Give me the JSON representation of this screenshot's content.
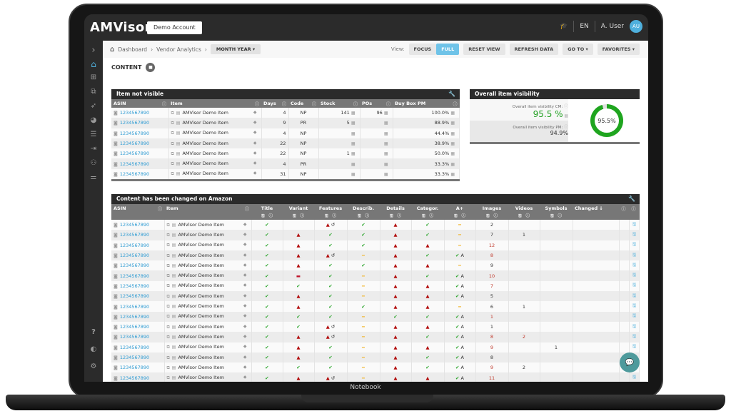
{
  "device": {
    "label": "Notebook"
  },
  "topbar": {
    "logo": "AMVisor",
    "account_button": "Demo Account",
    "language": "EN",
    "user_name": "A. User",
    "avatar_initials": "AU"
  },
  "breadcrumb": {
    "home": "Dashboard",
    "level2": "Vendor Analytics",
    "period_select": "MONTH YEAR ▾"
  },
  "toolbar": {
    "view_label": "View:",
    "focus": "FOCUS",
    "full": "FULL",
    "reset_view": "RESET VIEW",
    "refresh_data": "REFRESH DATA",
    "go_to": "GO TO ▾",
    "favorites": "FAVORITES ▾"
  },
  "section": {
    "title": "CONTENT"
  },
  "not_visible": {
    "title": "Item not visible",
    "columns": [
      "ASIN",
      "Item",
      "Days",
      "Code",
      "Stock",
      "POs",
      "Buy Box PM"
    ],
    "rows": [
      {
        "asin": "1234567890",
        "item": "AMVisor Demo Item",
        "days": "4",
        "code": "NP",
        "stock": "141",
        "pos": "96",
        "buybox": "100.0%"
      },
      {
        "asin": "1234567890",
        "item": "AMVisor Demo Item",
        "days": "9",
        "code": "PR",
        "stock": "5",
        "pos": "",
        "buybox": "88.9%"
      },
      {
        "asin": "1234567890",
        "item": "AMVisor Demo Item",
        "days": "4",
        "code": "NP",
        "stock": "",
        "pos": "",
        "buybox": "44.4%"
      },
      {
        "asin": "1234567890",
        "item": "AMVisor Demo Item",
        "days": "22",
        "code": "NP",
        "stock": "",
        "pos": "",
        "buybox": "38.9%"
      },
      {
        "asin": "1234567890",
        "item": "AMVisor Demo Item",
        "days": "22",
        "code": "NP",
        "stock": "1",
        "pos": "",
        "buybox": "50.0%"
      },
      {
        "asin": "1234567890",
        "item": "AMVisor Demo Item",
        "days": "4",
        "code": "PR",
        "stock": "",
        "pos": "",
        "buybox": "33.3%"
      },
      {
        "asin": "1234567890",
        "item": "AMVisor Demo Item",
        "days": "31",
        "code": "NP",
        "stock": "",
        "pos": "",
        "buybox": "33.3%"
      }
    ]
  },
  "visibility": {
    "title": "Overall item visibility",
    "cm_label": "Overall item visibility CM:",
    "cm_value": "95.5 %",
    "pm_label": "Overall item visibility PM:",
    "pm_value": "94.9%",
    "donut_label": "95.5%",
    "donut_percent": 95.5,
    "donut_color": "#1fa51f"
  },
  "changed": {
    "title": "Content has been changed on Amazon",
    "columns": [
      "ASIN",
      "Item",
      "Title",
      "Variant",
      "Features",
      "Describ.",
      "Details",
      "Categor.",
      "A+",
      "Images",
      "Videos",
      "Symbols",
      "Changed ↓"
    ],
    "rows": [
      {
        "asin": "1234567890",
        "item": "AMVisor Demo Item",
        "title": "ok",
        "variant": "",
        "features": "warn-undo",
        "describ": "ok",
        "details": "warn",
        "categor": "ok",
        "aplus": "dash",
        "images": "2",
        "images_red": false,
        "videos": "",
        "videos_red": false,
        "symbols": ""
      },
      {
        "asin": "1234567890",
        "item": "AMVisor Demo Item",
        "title": "ok",
        "variant": "warn",
        "features": "ok",
        "describ": "ok",
        "details": "warn",
        "categor": "ok",
        "aplus": "dash",
        "images": "7",
        "images_red": false,
        "videos": "1",
        "videos_red": false,
        "symbols": ""
      },
      {
        "asin": "1234567890",
        "item": "AMVisor Demo Item",
        "title": "ok",
        "variant": "warn",
        "features": "ok",
        "describ": "ok",
        "details": "warn",
        "categor": "warn",
        "aplus": "dash",
        "images": "12",
        "images_red": true,
        "videos": "",
        "videos_red": false,
        "symbols": ""
      },
      {
        "asin": "1234567890",
        "item": "AMVisor Demo Item",
        "title": "ok",
        "variant": "warn",
        "features": "warn-undo",
        "describ": "dash",
        "details": "warn",
        "categor": "ok",
        "aplus": "okA",
        "images": "8",
        "images_red": true,
        "videos": "",
        "videos_red": false,
        "symbols": ""
      },
      {
        "asin": "1234567890",
        "item": "AMVisor Demo Item",
        "title": "ok",
        "variant": "warn",
        "features": "ok",
        "describ": "ok",
        "details": "warn",
        "categor": "warn",
        "aplus": "dash",
        "images": "9",
        "images_red": false,
        "videos": "",
        "videos_red": false,
        "symbols": ""
      },
      {
        "asin": "1234567890",
        "item": "AMVisor Demo Item",
        "title": "ok",
        "variant": "minus",
        "features": "ok",
        "describ": "dash",
        "details": "warn",
        "categor": "ok",
        "aplus": "okA",
        "images": "10",
        "images_red": true,
        "videos": "",
        "videos_red": false,
        "symbols": ""
      },
      {
        "asin": "1234567890",
        "item": "AMVisor Demo Item",
        "title": "ok",
        "variant": "ok",
        "features": "ok",
        "describ": "dash",
        "details": "warn",
        "categor": "warn",
        "aplus": "okA",
        "images": "7",
        "images_red": true,
        "videos": "",
        "videos_red": false,
        "symbols": ""
      },
      {
        "asin": "1234567890",
        "item": "AMVisor Demo Item",
        "title": "ok",
        "variant": "warn",
        "features": "ok",
        "describ": "dash",
        "details": "warn",
        "categor": "warn",
        "aplus": "okA",
        "images": "5",
        "images_red": false,
        "videos": "",
        "videos_red": false,
        "symbols": ""
      },
      {
        "asin": "1234567890",
        "item": "AMVisor Demo Item",
        "title": "ok",
        "variant": "warn",
        "features": "ok",
        "describ": "ok",
        "details": "warn",
        "categor": "warn",
        "aplus": "dash",
        "images": "6",
        "images_red": false,
        "videos": "1",
        "videos_red": false,
        "symbols": ""
      },
      {
        "asin": "1234567890",
        "item": "AMVisor Demo Item",
        "title": "ok",
        "variant": "ok",
        "features": "ok",
        "describ": "dash",
        "details": "ok",
        "categor": "ok",
        "aplus": "okA",
        "images": "1",
        "images_red": true,
        "videos": "",
        "videos_red": false,
        "symbols": ""
      },
      {
        "asin": "1234567890",
        "item": "AMVisor Demo Item",
        "title": "ok",
        "variant": "ok",
        "features": "warn-undo",
        "describ": "dash",
        "details": "warn",
        "categor": "warn",
        "aplus": "okA",
        "images": "1",
        "images_red": false,
        "videos": "",
        "videos_red": false,
        "symbols": ""
      },
      {
        "asin": "1234567890",
        "item": "AMVisor Demo Item",
        "title": "ok",
        "variant": "warn",
        "features": "warn-undo",
        "describ": "dash",
        "details": "warn",
        "categor": "ok",
        "aplus": "okA",
        "images": "8",
        "images_red": true,
        "videos": "2",
        "videos_red": true,
        "symbols": ""
      },
      {
        "asin": "1234567890",
        "item": "AMVisor Demo Item",
        "title": "ok",
        "variant": "warn",
        "features": "ok",
        "describ": "dash",
        "details": "warn",
        "categor": "warn",
        "aplus": "okA",
        "images": "9",
        "images_red": true,
        "videos": "",
        "videos_red": false,
        "symbols": "1"
      },
      {
        "asin": "1234567890",
        "item": "AMVisor Demo Item",
        "title": "ok",
        "variant": "warn",
        "features": "ok",
        "describ": "dash",
        "details": "warn",
        "categor": "ok",
        "aplus": "okA",
        "images": "8",
        "images_red": false,
        "videos": "",
        "videos_red": false,
        "symbols": ""
      },
      {
        "asin": "1234567890",
        "item": "AMVisor Demo Item",
        "title": "ok",
        "variant": "ok",
        "features": "ok",
        "describ": "dash",
        "details": "warn",
        "categor": "ok",
        "aplus": "okA",
        "images": "9",
        "images_red": true,
        "videos": "2",
        "videos_red": false,
        "symbols": ""
      },
      {
        "asin": "1234567890",
        "item": "AMVisor Demo Item",
        "title": "ok",
        "variant": "warn",
        "features": "warn-undo",
        "describ": "dash",
        "details": "warn",
        "categor": "warn",
        "aplus": "okA",
        "images": "11",
        "images_red": true,
        "videos": "",
        "videos_red": false,
        "symbols": ""
      }
    ]
  },
  "icons": {
    "ok": "✔",
    "warn": "▲",
    "undo": "↺",
    "dash": "━",
    "minus": "▬",
    "a_label": "A",
    "save": "🖫",
    "info": "ⓘ",
    "camera": "◙",
    "external": "⧉",
    "doc": "▤",
    "tag": "◆",
    "chart": "▦",
    "wrench": "🔧",
    "chat": "💬",
    "home": "⌂"
  },
  "sidebar": {
    "items": [
      {
        "name": "expand",
        "glyph": "›"
      },
      {
        "name": "home",
        "glyph": "⌂"
      },
      {
        "name": "table",
        "glyph": "⊞"
      },
      {
        "name": "copy",
        "glyph": "⧉"
      },
      {
        "name": "rocket",
        "glyph": "➶"
      },
      {
        "name": "pie",
        "glyph": "◕"
      },
      {
        "name": "list",
        "glyph": "☰"
      },
      {
        "name": "export",
        "glyph": "⇥"
      },
      {
        "name": "users",
        "glyph": "⚇"
      },
      {
        "name": "filter",
        "glyph": "⚌"
      },
      {
        "name": "help",
        "glyph": "?"
      },
      {
        "name": "shield",
        "glyph": "◐"
      },
      {
        "name": "settings",
        "glyph": "⚙"
      }
    ]
  }
}
